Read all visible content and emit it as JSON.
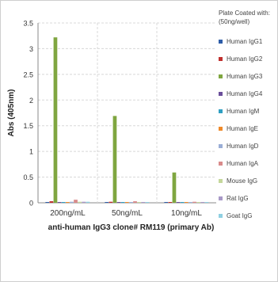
{
  "chart_data": {
    "type": "bar",
    "title": "",
    "xlabel": "anti-human IgG3 clone# RM119 (primary Ab)",
    "ylabel": "Abs (405nm)",
    "ylim": [
      0,
      3.5
    ],
    "yticks": [
      "0",
      "0.5",
      "1",
      "1.5",
      "2",
      "2.5",
      "3",
      "3.5"
    ],
    "grid": "horizontal",
    "legend_position": "right",
    "legend_title": [
      "Plate Coated with:",
      "(50ng/well)"
    ],
    "categories": [
      "200ng/mL",
      "50ng/mL",
      "10ng/mL"
    ],
    "series": [
      {
        "name": "Human IgG1",
        "color": "#2e5da8",
        "values": [
          0.01,
          0.01,
          0.01
        ]
      },
      {
        "name": "Human IgG2",
        "color": "#c0302e",
        "values": [
          0.03,
          0.02,
          0.01
        ]
      },
      {
        "name": "Human IgG3",
        "color": "#7fa640",
        "values": [
          3.22,
          1.69,
          0.59
        ]
      },
      {
        "name": "Human IgG4",
        "color": "#6b4f9b",
        "values": [
          0.01,
          0.01,
          0.01
        ]
      },
      {
        "name": "Human IgM",
        "color": "#2f9fc2",
        "values": [
          0.01,
          0.01,
          0.01
        ]
      },
      {
        "name": "Human IgE",
        "color": "#ef8a2a",
        "values": [
          0.01,
          0.01,
          0.01
        ]
      },
      {
        "name": "Human IgD",
        "color": "#9aaed6",
        "values": [
          0.02,
          0.01,
          0.01
        ]
      },
      {
        "name": "Human IgA",
        "color": "#d98b8b",
        "values": [
          0.06,
          0.03,
          0.02
        ]
      },
      {
        "name": "Mouse IgG",
        "color": "#c4d79b",
        "values": [
          0.02,
          0.01,
          0.01
        ]
      },
      {
        "name": "Rat IgG",
        "color": "#a899c7",
        "values": [
          0.02,
          0.01,
          0.01
        ]
      },
      {
        "name": "Goat IgG",
        "color": "#8fd0e2",
        "values": [
          0.02,
          0.01,
          0.01
        ]
      }
    ]
  }
}
